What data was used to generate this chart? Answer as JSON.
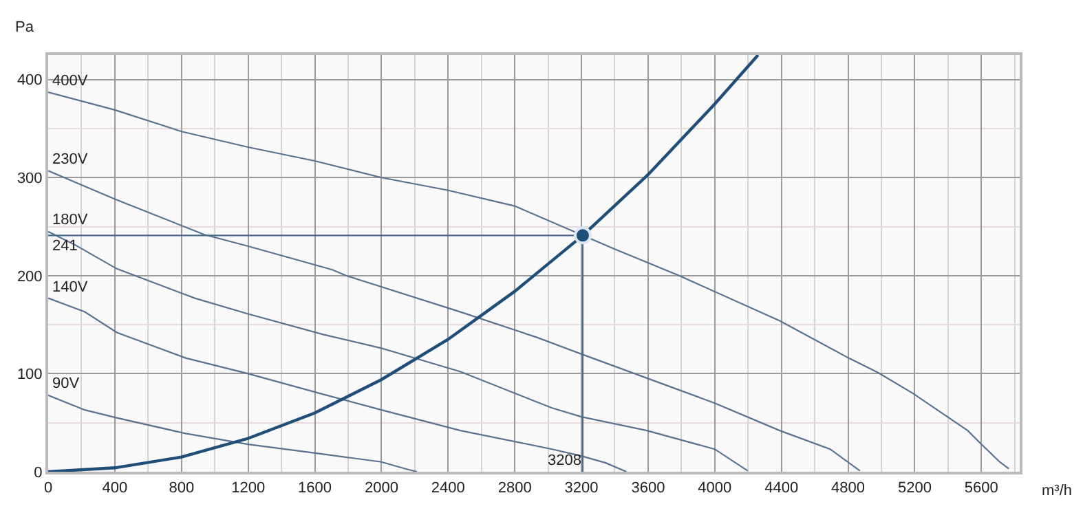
{
  "chart_data": {
    "type": "line",
    "xlabel": "m³/h",
    "ylabel": "Pa",
    "xlim": [
      0,
      5830
    ],
    "ylim": [
      0,
      425
    ],
    "xticks": [
      0,
      400,
      800,
      1200,
      1600,
      2000,
      2400,
      2800,
      3200,
      3600,
      4000,
      4400,
      4800,
      5200,
      5600
    ],
    "yticks": [
      0,
      100,
      200,
      300,
      400
    ],
    "grid": true,
    "legend": false,
    "marker": "none",
    "line_style": "solid",
    "series": [
      {
        "name": "400V",
        "color": "#5a7290",
        "x": [
          0,
          400,
          800,
          1200,
          1600,
          2000,
          2400,
          2800,
          3208,
          3400,
          3786,
          4390,
          4803,
          4981,
          5188,
          5518,
          5600,
          5710,
          5765
        ],
        "values": [
          387,
          369,
          347,
          331,
          317,
          300,
          287,
          271,
          241,
          227,
          200,
          154,
          116,
          101,
          80,
          42,
          28,
          10,
          3
        ]
      },
      {
        "name": "230V",
        "color": "#5a7290",
        "x": [
          0,
          400,
          935,
          1200,
          1705,
          1787,
          2474,
          2933,
          3200,
          4000,
          4390,
          4693,
          4871
        ],
        "values": [
          307,
          278,
          242,
          230,
          206,
          200,
          163,
          137,
          120,
          70,
          42,
          23,
          1
        ]
      },
      {
        "name": "180V",
        "color": "#5a7290",
        "x": [
          0,
          165,
          412,
          880,
          1200,
          1650,
          2000,
          2474,
          3024,
          3200,
          3593,
          4000,
          4198
        ],
        "values": [
          245,
          231,
          207,
          177,
          161,
          140,
          126,
          102,
          65,
          56,
          42,
          23,
          1
        ]
      },
      {
        "name": "140V",
        "color": "#5a7290",
        "x": [
          0,
          220,
          412,
          825,
          1200,
          1650,
          2000,
          2474,
          3024,
          3200,
          3346,
          3470
        ],
        "values": [
          177,
          163,
          142,
          116,
          100,
          79,
          63,
          42,
          23,
          16,
          9,
          0
        ]
      },
      {
        "name": "90V",
        "color": "#5a7290",
        "x": [
          0,
          220,
          412,
          825,
          1200,
          1650,
          2000,
          2144,
          2213
        ],
        "values": [
          78,
          63,
          55,
          39,
          28,
          18,
          10,
          3,
          0
        ]
      },
      {
        "color": "#1f4e79",
        "x": [
          0,
          400,
          800,
          1200,
          1600,
          2000,
          2400,
          2800,
          3208,
          3600,
          4000,
          4260
        ],
        "values": [
          0,
          4,
          15,
          34,
          60,
          94,
          135,
          184,
          241,
          303,
          375,
          425
        ]
      },
      {
        "color": "#4a6a8a",
        "x": [
          0,
          3208,
          3208
        ],
        "values": [
          241,
          241,
          0
        ]
      },
      {
        "type": "scatter",
        "marker": "circle",
        "color": "#1f4e79",
        "x": [
          3208
        ],
        "values": [
          241
        ]
      }
    ],
    "annotations": [
      {
        "text": "241",
        "x": 0,
        "y": 241
      },
      {
        "text": "3208",
        "x": 3208,
        "y": 0
      }
    ]
  }
}
